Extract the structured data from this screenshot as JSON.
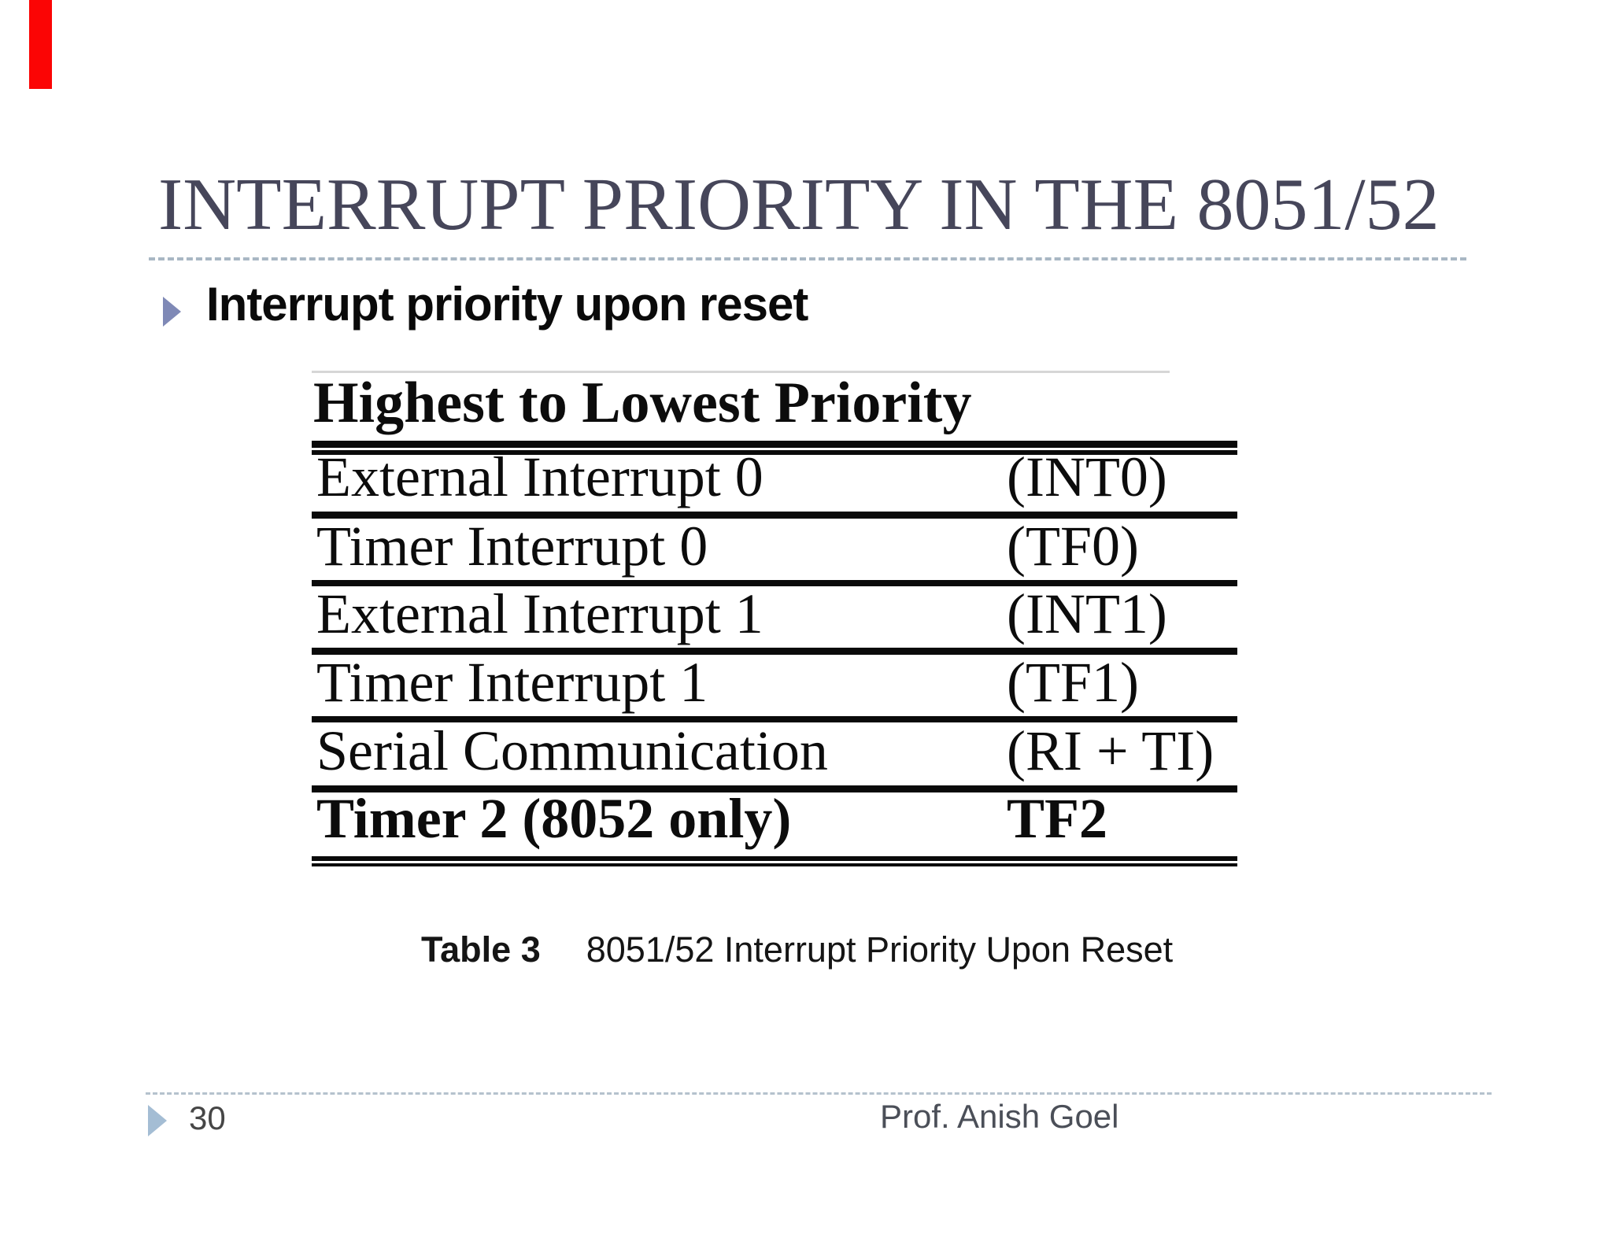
{
  "slide": {
    "title": "INTERRUPT PRIORITY IN THE 8051/52",
    "bullet_text": "Interrupt priority upon reset"
  },
  "table": {
    "header": "Highest to Lowest Priority",
    "rows": [
      {
        "source": "External Interrupt 0",
        "flag": "(INT0)"
      },
      {
        "source": "Timer Interrupt 0",
        "flag": "(TF0)"
      },
      {
        "source": "External Interrupt 1",
        "flag": "(INT1)"
      },
      {
        "source": "Timer Interrupt 1",
        "flag": "(TF1)"
      },
      {
        "source": "Serial Communication",
        "flag": "(RI + TI)"
      },
      {
        "source": "Timer 2 (8052 only)",
        "flag": "TF2"
      }
    ]
  },
  "caption": {
    "label": "Table 3",
    "text": "8051/52 Interrupt Priority Upon Reset"
  },
  "footer": {
    "page_number": "30",
    "author": "Prof. Anish Goel"
  },
  "colors": {
    "title_text": "#46465a",
    "dashed_rule": "#a9b7c4",
    "footer_dashed_rule": "#b5c2cd",
    "bullet_triangle": "#7f89b6",
    "footer_triangle": "#a4bdd4",
    "table_ink": "#0c0c0c",
    "red_marker": "#fb0505",
    "background": "#ffffff"
  }
}
